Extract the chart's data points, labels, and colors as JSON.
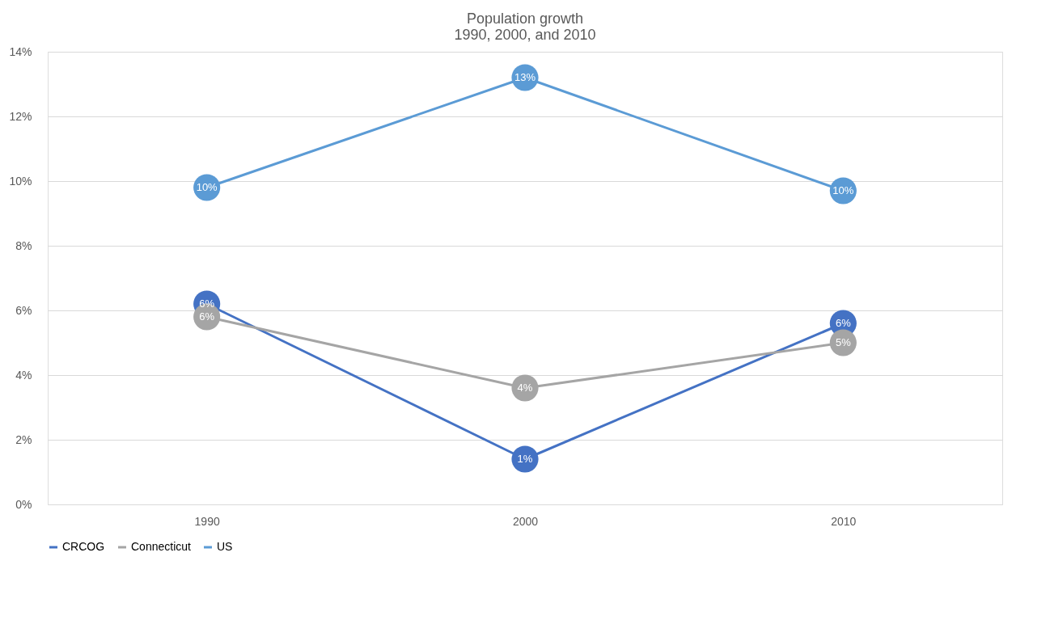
{
  "chart_data": {
    "type": "line",
    "title": [
      "Population growth",
      "1990, 2000, and 2010"
    ],
    "categories": [
      "1990",
      "2000",
      "2010"
    ],
    "series": [
      {
        "name": "CRCOG",
        "color": "#4472c4",
        "values": [
          6.2,
          1.4,
          5.6
        ],
        "value_labels": [
          "6%",
          "1%",
          "6%"
        ]
      },
      {
        "name": "Connecticut",
        "color": "#a5a5a5",
        "values": [
          5.8,
          3.6,
          5.0
        ],
        "value_labels": [
          "6%",
          "4%",
          "5%"
        ]
      },
      {
        "name": "US",
        "color": "#5b9bd5",
        "values": [
          9.8,
          13.2,
          9.7
        ],
        "value_labels": [
          "10%",
          "13%",
          "10%"
        ]
      }
    ],
    "ylim": [
      0,
      14
    ],
    "yticks": [
      {
        "value": 0,
        "label": "0%"
      },
      {
        "value": 2,
        "label": "2%"
      },
      {
        "value": 4,
        "label": "4%"
      },
      {
        "value": 6,
        "label": "6%"
      },
      {
        "value": 8,
        "label": "8%"
      },
      {
        "value": 10,
        "label": "10%"
      },
      {
        "value": 12,
        "label": "12%"
      },
      {
        "value": 14,
        "label": "14%"
      }
    ],
    "grid": "y",
    "legend": "bottom",
    "marker": "circle",
    "line_style": "solid"
  }
}
